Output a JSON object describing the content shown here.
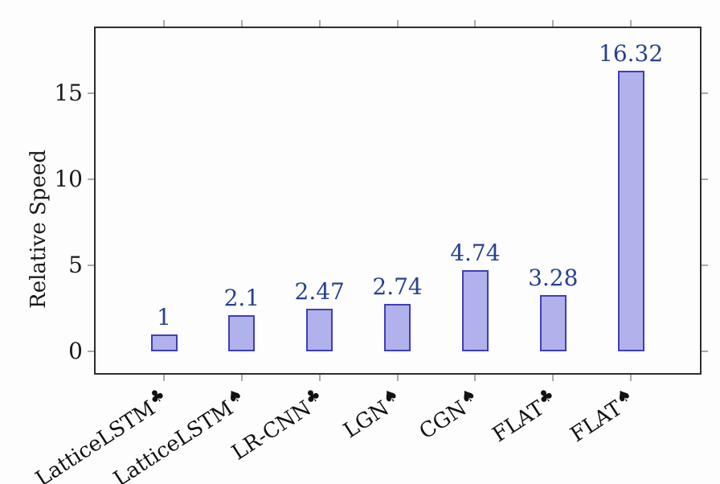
{
  "chart_data": {
    "type": "bar",
    "title": "",
    "xlabel": "",
    "ylabel": "Relative Speed",
    "categories": [
      "LatticeLSTM♣",
      "LatticeLSTM♠",
      "LR-CNN♣",
      "LGN♠",
      "CGN♠",
      "FLAT♣",
      "FLAT♠"
    ],
    "category_parts": [
      {
        "base": "LatticeLSTM",
        "suit": "♣"
      },
      {
        "base": "LatticeLSTM",
        "suit": "♠"
      },
      {
        "base": "LR-CNN",
        "suit": "♣"
      },
      {
        "base": "LGN",
        "suit": "♠"
      },
      {
        "base": "CGN",
        "suit": "♠"
      },
      {
        "base": "FLAT",
        "suit": "♣"
      },
      {
        "base": "FLAT",
        "suit": "♠"
      }
    ],
    "values": [
      1,
      2.1,
      2.47,
      2.74,
      4.74,
      3.28,
      16.32
    ],
    "value_labels": [
      "1",
      "2.1",
      "2.47",
      "2.74",
      "4.74",
      "3.28",
      "16.32"
    ],
    "yticks": [
      0,
      5,
      10,
      15
    ],
    "ylim": [
      -1.55,
      18.7
    ],
    "grid": false,
    "legend": null,
    "tick_align": "outside",
    "colors": {
      "bar_fill": "#b1b1ec",
      "bar_border": "#3f3fb8",
      "value_label": "#27418f",
      "axis_line": "#2e2e2e",
      "tick_mark": "#a9a9a9",
      "text": "#1a1a1a",
      "background": "#fdfdfd"
    }
  }
}
